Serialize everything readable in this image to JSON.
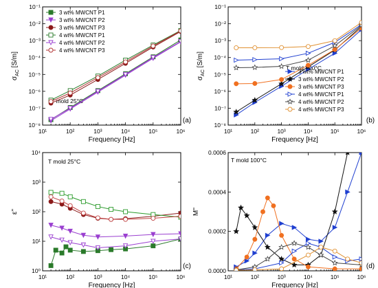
{
  "chart_data": [
    {
      "panel_tag": "(a)",
      "type": "scatter",
      "xscale": "log",
      "yscale": "log",
      "xlim": [
        10,
        1000000
      ],
      "ylim": [
        1e-08,
        0.1
      ],
      "xlabel": "Frequency [Hz]",
      "ylabel_main": "σ",
      "ylabel_sub": "AC",
      "ylabel_unit": " [S/m]",
      "xticks": [
        "10¹",
        "10²",
        "10³",
        "10⁴",
        "10⁵",
        "10⁶"
      ],
      "yticks": [
        "10⁻⁸",
        "10⁻⁷",
        "10⁻⁶",
        "10⁻⁵",
        "10⁻⁴",
        "10⁻³",
        "10⁻²",
        "10⁻¹"
      ],
      "annotation": "T mold 25°C",
      "legend_position": "top-left",
      "series": [
        {
          "name": "3 wt%  MWCNT P1",
          "color": "#2a7a2a",
          "marker": "square",
          "filled": true,
          "x": [
            20,
            100,
            1000,
            10000,
            100000,
            1000000
          ],
          "y": [
            2.1e-08,
            1.1e-07,
            1.1e-06,
            1.1e-05,
            0.00011,
            0.0011
          ]
        },
        {
          "name": "3 wt%  MWCNT P2",
          "color": "#9a3fd0",
          "marker": "tri_down",
          "filled": true,
          "x": [
            20,
            100,
            1000,
            10000,
            100000,
            1000000
          ],
          "y": [
            1.8e-08,
            9e-08,
            9e-07,
            9e-06,
            9e-05,
            0.00085
          ]
        },
        {
          "name": "3 wt%  MWCNT P3",
          "color": "#8b1a1a",
          "marker": "circle",
          "filled": true,
          "x": [
            20,
            100,
            1000,
            10000,
            100000,
            1000000
          ],
          "y": [
            2e-07,
            6e-07,
            5e-06,
            4.5e-05,
            0.00042,
            0.0035
          ]
        },
        {
          "name": "4 wt%  MWCNT P1",
          "color": "#2a7a2a",
          "marker": "square",
          "filled": false,
          "x": [
            20,
            100,
            1000,
            10000,
            100000,
            1000000
          ],
          "y": [
            3e-07,
            1.1e-06,
            8e-06,
            7e-05,
            0.00055,
            0.004
          ]
        },
        {
          "name": "4 wt% MWCNT P2",
          "color": "#9a3fd0",
          "marker": "tri_down",
          "filled": false,
          "x": [
            20,
            100,
            1000,
            10000,
            100000,
            1000000
          ],
          "y": [
            2.2e-08,
            1e-07,
            1e-06,
            1e-05,
            0.0001,
            0.0009
          ]
        },
        {
          "name": "4 wt%  MWCNT P3",
          "color": "#b03030",
          "marker": "circle",
          "filled": false,
          "x": [
            20,
            100,
            1000,
            10000,
            100000,
            1000000
          ],
          "y": [
            2.5e-07,
            8e-07,
            6.5e-06,
            5.5e-05,
            0.00048,
            0.0038
          ]
        }
      ]
    },
    {
      "panel_tag": "(b)",
      "type": "scatter",
      "xscale": "log",
      "yscale": "log",
      "xlim": [
        10,
        1000000
      ],
      "ylim": [
        1e-08,
        0.1
      ],
      "xlabel": "Frequency [Hz]",
      "ylabel_main": "σ",
      "ylabel_sub": "AC",
      "ylabel_unit": " [S/m]",
      "xticks": [
        "10¹",
        "10²",
        "10³",
        "10⁴",
        "10⁵",
        "10⁶"
      ],
      "yticks": [
        "10⁻⁸",
        "10⁻⁷",
        "10⁻⁶",
        "10⁻⁵",
        "10⁻⁴",
        "10⁻³",
        "10⁻²",
        "10⁻¹"
      ],
      "annotation": "T mold 100°C",
      "legend_position": "bottom-right",
      "series": [
        {
          "name": "3 wt% MWCNT P1",
          "color": "#1f3fd0",
          "marker": "tri_right",
          "filled": true,
          "x": [
            20,
            100,
            1000,
            10000,
            100000,
            1000000
          ],
          "y": [
            4e-08,
            2.2e-07,
            2e-06,
            2e-05,
            0.00018,
            0.0045
          ]
        },
        {
          "name": "3 wt% MWCNT P2",
          "color": "#111111",
          "marker": "star",
          "filled": true,
          "x": [
            20,
            100,
            1000,
            10000,
            100000,
            1000000
          ],
          "y": [
            6e-08,
            3e-07,
            2.8e-06,
            2.8e-05,
            0.00028,
            0.007
          ]
        },
        {
          "name": "3 wt% MWCNT P3",
          "color": "#f07020",
          "marker": "circle",
          "filled": true,
          "x": [
            20,
            100,
            1000,
            10000,
            100000,
            1000000
          ],
          "y": [
            2.8e-06,
            2.9e-06,
            5e-06,
            3.5e-05,
            0.0003,
            0.0055
          ]
        },
        {
          "name": "4 wt% MWCNT P1",
          "color": "#1f3fd0",
          "marker": "tri_right",
          "filled": false,
          "x": [
            20,
            100,
            1000,
            10000,
            100000,
            1000000
          ],
          "y": [
            7e-05,
            7.5e-05,
            8.5e-05,
            0.00018,
            0.0008,
            0.009
          ]
        },
        {
          "name": "4 wt% MWCNT P2",
          "color": "#444444",
          "marker": "star",
          "filled": false,
          "x": [
            20,
            100,
            1000,
            10000,
            100000,
            1000000
          ],
          "y": [
            2.5e-05,
            2.6e-05,
            3e-05,
            7e-05,
            0.0005,
            0.008
          ]
        },
        {
          "name": "4 wt% MWCNT P3",
          "color": "#e09030",
          "marker": "circle",
          "filled": false,
          "x": [
            20,
            100,
            1000,
            10000,
            100000,
            1000000
          ],
          "y": [
            0.00038,
            0.00038,
            0.00039,
            0.00045,
            0.001,
            0.012
          ]
        }
      ]
    },
    {
      "panel_tag": "(c)",
      "type": "scatter",
      "xscale": "log",
      "yscale": "log",
      "xlim": [
        10,
        1000000
      ],
      "ylim": [
        1,
        10000
      ],
      "xlabel": "Frequency [Hz]",
      "ylabel_main": "ε''",
      "xticks": [
        "10¹",
        "10²",
        "10³",
        "10⁴",
        "10⁵",
        "10⁶"
      ],
      "yticks": [
        "10⁰",
        "10¹",
        "10²",
        "10³",
        "10⁴"
      ],
      "annotation": "T mold 25°C",
      "series": [
        {
          "color": "#2a7a2a",
          "marker": "square",
          "filled": true,
          "x": [
            20,
            30,
            50,
            70,
            100,
            300,
            1000,
            3000,
            10000,
            100000,
            1000000
          ],
          "y": [
            1.5,
            5,
            4,
            6.5,
            5,
            4.5,
            4.8,
            5.2,
            5.5,
            7,
            12
          ]
        },
        {
          "color": "#9a3fd0",
          "marker": "tri_down",
          "filled": true,
          "x": [
            20,
            50,
            100,
            300,
            1000,
            10000,
            100000,
            1000000
          ],
          "y": [
            35,
            28,
            22,
            16,
            14,
            15,
            17,
            18
          ]
        },
        {
          "color": "#8b1a1a",
          "marker": "circle",
          "filled": true,
          "x": [
            20,
            50,
            100,
            300,
            1000,
            3000,
            10000,
            100000,
            1000000
          ],
          "y": [
            220,
            180,
            130,
            80,
            60,
            55,
            58,
            70,
            90
          ]
        },
        {
          "color": "#2a9a2a",
          "marker": "square",
          "filled": false,
          "x": [
            20,
            50,
            100,
            300,
            1000,
            3000,
            10000,
            100000,
            1000000
          ],
          "y": [
            450,
            420,
            320,
            220,
            150,
            120,
            100,
            80,
            65
          ]
        },
        {
          "color": "#9a3fd0",
          "marker": "tri_down",
          "filled": false,
          "x": [
            20,
            50,
            100,
            300,
            1000,
            10000,
            100000,
            1000000
          ],
          "y": [
            14,
            11,
            9,
            7.5,
            6,
            7,
            10,
            12
          ]
        },
        {
          "color": "#c04040",
          "marker": "circle",
          "filled": false,
          "x": [
            20,
            50,
            100,
            300,
            1000,
            3000,
            10000,
            100000,
            1000000
          ],
          "y": [
            320,
            230,
            160,
            90,
            62,
            55,
            55,
            60,
            70
          ]
        }
      ]
    },
    {
      "panel_tag": "(d)",
      "type": "line",
      "xscale": "log",
      "yscale": "linear",
      "xlim": [
        10,
        1000000
      ],
      "ylim": [
        0,
        0.0006
      ],
      "xlabel": "Frequency [Hz]",
      "ylabel_main": "M''",
      "xticks": [
        "10¹",
        "10²",
        "10³",
        "10⁴",
        "10⁵",
        "10⁶"
      ],
      "yticks": [
        "0.0000",
        "0.0002",
        "0.0004",
        "0.0006"
      ],
      "annotation": "T mold 100°C",
      "series": [
        {
          "color": "#1f3fd0",
          "marker": "tri_right",
          "filled": true,
          "x": [
            20,
            50,
            100,
            300,
            1000,
            3000,
            10000,
            30000,
            100000,
            300000,
            1000000
          ],
          "y": [
            2e-05,
            5e-05,
            9e-05,
            0.00018,
            0.00024,
            0.00022,
            0.00016,
            0.00015,
            0.00022,
            0.0004,
            0.0006
          ]
        },
        {
          "color": "#111111",
          "marker": "star",
          "filled": true,
          "x": [
            20,
            30,
            50,
            100,
            300,
            1000,
            3000,
            10000,
            30000,
            100000,
            300000
          ],
          "y": [
            0.0002,
            0.00032,
            0.00028,
            0.00022,
            0.00012,
            6e-05,
            3e-05,
            3e-05,
            8e-05,
            0.0003,
            0.0006
          ]
        },
        {
          "color": "#f07020",
          "marker": "circle",
          "filled": true,
          "x": [
            20,
            50,
            100,
            200,
            300,
            500,
            1000,
            3000,
            10000,
            100000,
            1000000
          ],
          "y": [
            1e-05,
            7e-05,
            0.00016,
            0.0003,
            0.00037,
            0.00033,
            0.00018,
            6e-05,
            2e-05,
            1e-05,
            1e-05
          ]
        },
        {
          "color": "#1f3fd0",
          "marker": "tri_right",
          "filled": false,
          "x": [
            20,
            100,
            1000,
            3000,
            10000,
            30000,
            100000,
            300000,
            1000000
          ],
          "y": [
            5e-06,
            1e-05,
            4e-05,
            0.0001,
            0.00014,
            0.00012,
            7e-05,
            5e-05,
            6e-05
          ]
        },
        {
          "color": "#444444",
          "marker": "star",
          "filled": false,
          "x": [
            20,
            100,
            300,
            1000,
            3000,
            10000,
            30000,
            100000,
            1000000
          ],
          "y": [
            5e-06,
            2e-05,
            6e-05,
            0.00012,
            0.00014,
            0.00012,
            8e-05,
            4e-05,
            3e-05
          ]
        },
        {
          "color": "#e09030",
          "marker": "circle",
          "filled": false,
          "x": [
            20,
            100,
            1000,
            10000,
            30000,
            100000,
            300000,
            1000000
          ],
          "y": [
            3e-06,
            5e-06,
            1e-05,
            8e-05,
            0.00012,
            0.0001,
            6e-05,
            4e-05
          ]
        }
      ]
    }
  ]
}
